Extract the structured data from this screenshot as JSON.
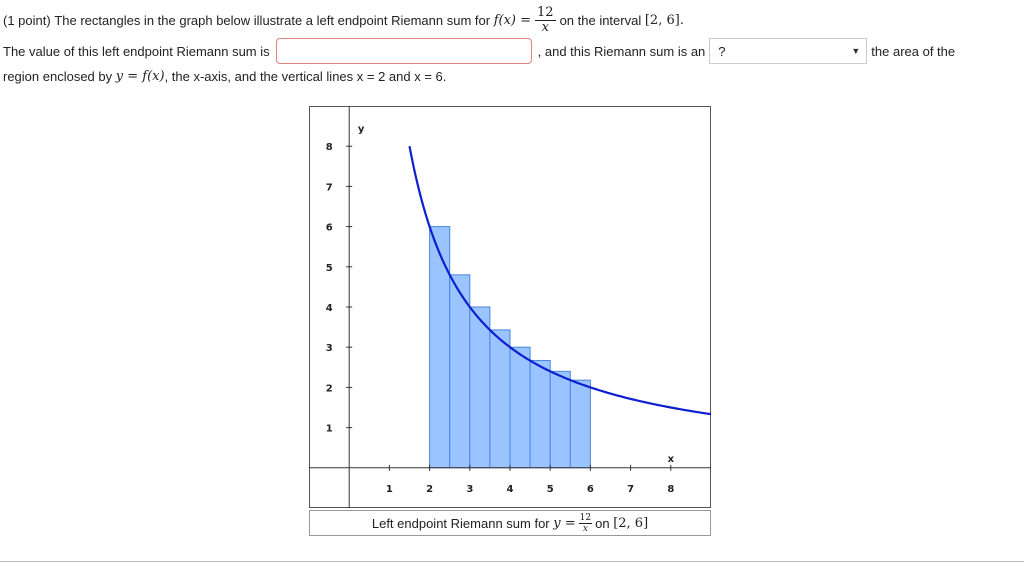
{
  "problem": {
    "points": "(1 point)",
    "intro": "The rectangles in the graph below illustrate a left endpoint Riemann sum for",
    "f_lhs": "f(x) =",
    "f_num": "12",
    "f_den": "x",
    "interval_prefix": "on the interval",
    "interval": "[2, 6].",
    "value_prompt": "The value of this left endpoint Riemann sum is",
    "answer_value": "",
    "comparison_prompt": ", and this Riemann sum is an",
    "comparison_selected": "?",
    "area_text": "the area of the",
    "region_prefix": "region enclosed by",
    "region_eq": "y = f(x)",
    "region_suffix": ", the x-axis, and the vertical lines x = 2 and x = 6."
  },
  "graph": {
    "caption_prefix": "Left endpoint Riemann sum for",
    "caption_eq": "y =",
    "caption_num": "12",
    "caption_den": "x",
    "caption_on": "on",
    "caption_interval": "[2, 6]",
    "colors": {
      "bar_fill": "#99c4ff",
      "bar_stroke": "#4a86e0",
      "curve": "#0d1fcf",
      "axis": "#333333"
    }
  },
  "chart_data": {
    "type": "bar",
    "function": "12/x",
    "interval": [
      2,
      6
    ],
    "rect_width": 0.5,
    "rect_left_x": [
      2,
      2.5,
      3,
      3.5,
      4,
      4.5,
      5,
      5.5
    ],
    "rect_heights": [
      6,
      4.8,
      4,
      3.43,
      3,
      2.67,
      2.4,
      2.18
    ],
    "xlabel": "x",
    "ylabel": "y",
    "x_ticks": [
      "1",
      "2",
      "3",
      "4",
      "5",
      "6",
      "7",
      "8"
    ],
    "y_ticks": [
      "1",
      "2",
      "3",
      "4",
      "5",
      "6",
      "7",
      "8"
    ],
    "xlim": [
      -1,
      9
    ],
    "ylim": [
      -1,
      9
    ]
  }
}
